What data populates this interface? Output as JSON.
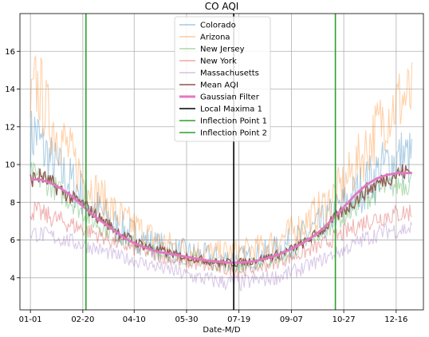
{
  "chart_data": {
    "type": "line",
    "title": "CO AQI",
    "xlabel": "Date-M/D",
    "ylabel": "",
    "grid": true,
    "legend_position": "top-center",
    "xlim": [
      -10,
      375
    ],
    "ylim": [
      2.3,
      18.0
    ],
    "x_ticks": [
      {
        "day": 0,
        "label": "01-01"
      },
      {
        "day": 50,
        "label": "02-20"
      },
      {
        "day": 99,
        "label": "04-10"
      },
      {
        "day": 149,
        "label": "05-30"
      },
      {
        "day": 199,
        "label": "07-19"
      },
      {
        "day": 249,
        "label": "09-07"
      },
      {
        "day": 299,
        "label": "10-27"
      },
      {
        "day": 349,
        "label": "12-16"
      }
    ],
    "y_ticks": [
      4,
      6,
      8,
      10,
      12,
      14,
      16
    ],
    "series": [
      {
        "name": "Colorado",
        "color": "#1f77b4",
        "style": "noisy",
        "values": [
          [
            0,
            11.2
          ],
          [
            5,
            11.8
          ],
          [
            10,
            11.0
          ],
          [
            15,
            10.6
          ],
          [
            20,
            10.1
          ],
          [
            30,
            9.5
          ],
          [
            40,
            9.0
          ],
          [
            50,
            8.5
          ],
          [
            60,
            7.8
          ],
          [
            70,
            7.3
          ],
          [
            80,
            6.8
          ],
          [
            90,
            6.5
          ],
          [
            100,
            6.2
          ],
          [
            120,
            5.7
          ],
          [
            140,
            5.4
          ],
          [
            160,
            5.2
          ],
          [
            180,
            5.0
          ],
          [
            200,
            5.0
          ],
          [
            220,
            5.2
          ],
          [
            240,
            5.6
          ],
          [
            260,
            6.2
          ],
          [
            280,
            6.9
          ],
          [
            300,
            7.9
          ],
          [
            320,
            9.0
          ],
          [
            340,
            10.0
          ],
          [
            355,
            10.4
          ],
          [
            364,
            10.3
          ]
        ]
      },
      {
        "name": "Arizona",
        "color": "#ff7f0e",
        "style": "noisy",
        "values": [
          [
            0,
            12.8
          ],
          [
            5,
            14.2
          ],
          [
            10,
            13.8
          ],
          [
            15,
            12.8
          ],
          [
            20,
            12.2
          ],
          [
            30,
            11.4
          ],
          [
            40,
            10.3
          ],
          [
            50,
            9.3
          ],
          [
            60,
            8.7
          ],
          [
            70,
            8.1
          ],
          [
            80,
            7.5
          ],
          [
            90,
            7.0
          ],
          [
            100,
            6.7
          ],
          [
            120,
            6.0
          ],
          [
            140,
            5.6
          ],
          [
            160,
            5.4
          ],
          [
            180,
            5.3
          ],
          [
            200,
            5.4
          ],
          [
            220,
            5.6
          ],
          [
            240,
            6.1
          ],
          [
            260,
            6.8
          ],
          [
            280,
            7.8
          ],
          [
            300,
            9.0
          ],
          [
            320,
            10.8
          ],
          [
            340,
            12.8
          ],
          [
            355,
            13.5
          ],
          [
            364,
            13.5
          ]
        ]
      },
      {
        "name": "New Jersey",
        "color": "#2ca02c",
        "style": "noisy",
        "values": [
          [
            0,
            9.5
          ],
          [
            20,
            8.9
          ],
          [
            40,
            8.0
          ],
          [
            60,
            7.0
          ],
          [
            80,
            6.3
          ],
          [
            100,
            5.8
          ],
          [
            120,
            5.4
          ],
          [
            140,
            5.1
          ],
          [
            160,
            4.9
          ],
          [
            180,
            4.7
          ],
          [
            200,
            4.6
          ],
          [
            220,
            4.8
          ],
          [
            240,
            5.1
          ],
          [
            260,
            5.7
          ],
          [
            280,
            6.5
          ],
          [
            300,
            7.3
          ],
          [
            320,
            8.2
          ],
          [
            340,
            8.8
          ],
          [
            364,
            9.1
          ]
        ]
      },
      {
        "name": "New York",
        "color": "#d62728",
        "style": "noisy",
        "values": [
          [
            0,
            7.6
          ],
          [
            20,
            7.2
          ],
          [
            40,
            6.8
          ],
          [
            60,
            6.4
          ],
          [
            80,
            5.9
          ],
          [
            100,
            5.5
          ],
          [
            120,
            5.2
          ],
          [
            140,
            4.9
          ],
          [
            160,
            4.7
          ],
          [
            180,
            4.5
          ],
          [
            200,
            4.4
          ],
          [
            220,
            4.6
          ],
          [
            240,
            4.9
          ],
          [
            260,
            5.3
          ],
          [
            280,
            5.8
          ],
          [
            300,
            6.4
          ],
          [
            320,
            7.0
          ],
          [
            340,
            7.3
          ],
          [
            364,
            7.5
          ]
        ]
      },
      {
        "name": "Massachusetts",
        "color": "#9467bd",
        "style": "noisy",
        "values": [
          [
            0,
            6.4
          ],
          [
            20,
            6.2
          ],
          [
            40,
            5.9
          ],
          [
            60,
            5.6
          ],
          [
            80,
            5.2
          ],
          [
            100,
            4.9
          ],
          [
            120,
            4.6
          ],
          [
            140,
            4.3
          ],
          [
            160,
            4.0
          ],
          [
            180,
            3.8
          ],
          [
            200,
            3.7
          ],
          [
            220,
            3.9
          ],
          [
            240,
            4.1
          ],
          [
            260,
            4.5
          ],
          [
            280,
            5.0
          ],
          [
            300,
            5.5
          ],
          [
            320,
            6.1
          ],
          [
            340,
            6.5
          ],
          [
            364,
            6.6
          ]
        ]
      },
      {
        "name": "Mean AQI",
        "color": "#8c564b",
        "style": "mean",
        "values": [
          [
            0,
            9.2
          ],
          [
            10,
            9.4
          ],
          [
            20,
            9.0
          ],
          [
            30,
            8.6
          ],
          [
            40,
            8.2
          ],
          [
            50,
            7.9
          ],
          [
            60,
            7.4
          ],
          [
            70,
            7.0
          ],
          [
            80,
            6.6
          ],
          [
            90,
            6.2
          ],
          [
            100,
            5.9
          ],
          [
            120,
            5.5
          ],
          [
            140,
            5.2
          ],
          [
            160,
            5.0
          ],
          [
            180,
            4.8
          ],
          [
            200,
            4.8
          ],
          [
            220,
            5.0
          ],
          [
            240,
            5.3
          ],
          [
            260,
            5.8
          ],
          [
            280,
            6.6
          ],
          [
            300,
            7.6
          ],
          [
            320,
            8.6
          ],
          [
            340,
            9.3
          ],
          [
            355,
            9.6
          ],
          [
            364,
            9.6
          ]
        ]
      },
      {
        "name": "Gaussian Filter",
        "color": "#e377c2",
        "style": "smooth",
        "values": [
          [
            0,
            9.2
          ],
          [
            10,
            9.2
          ],
          [
            20,
            9.0
          ],
          [
            30,
            8.7
          ],
          [
            40,
            8.3
          ],
          [
            50,
            7.8
          ],
          [
            60,
            7.3
          ],
          [
            70,
            6.9
          ],
          [
            80,
            6.5
          ],
          [
            90,
            6.1
          ],
          [
            100,
            5.8
          ],
          [
            110,
            5.6
          ],
          [
            120,
            5.4
          ],
          [
            130,
            5.3
          ],
          [
            140,
            5.2
          ],
          [
            150,
            5.1
          ],
          [
            160,
            5.0
          ],
          [
            170,
            4.9
          ],
          [
            180,
            4.85
          ],
          [
            190,
            4.8
          ],
          [
            197,
            4.8
          ],
          [
            210,
            4.85
          ],
          [
            220,
            4.95
          ],
          [
            230,
            5.1
          ],
          [
            240,
            5.3
          ],
          [
            250,
            5.55
          ],
          [
            260,
            5.85
          ],
          [
            270,
            6.2
          ],
          [
            280,
            6.65
          ],
          [
            290,
            7.2
          ],
          [
            300,
            7.8
          ],
          [
            310,
            8.4
          ],
          [
            320,
            8.9
          ],
          [
            330,
            9.25
          ],
          [
            340,
            9.45
          ],
          [
            350,
            9.55
          ],
          [
            364,
            9.55
          ]
        ]
      }
    ],
    "vlines": [
      {
        "name": "Local Maxima 1",
        "x": 194,
        "color": "#000000"
      },
      {
        "name": "Inflection Point 1",
        "x": 53,
        "color": "#2ca02c"
      },
      {
        "name": "Inflection Point 2",
        "x": 291,
        "color": "#2ca02c"
      }
    ]
  }
}
